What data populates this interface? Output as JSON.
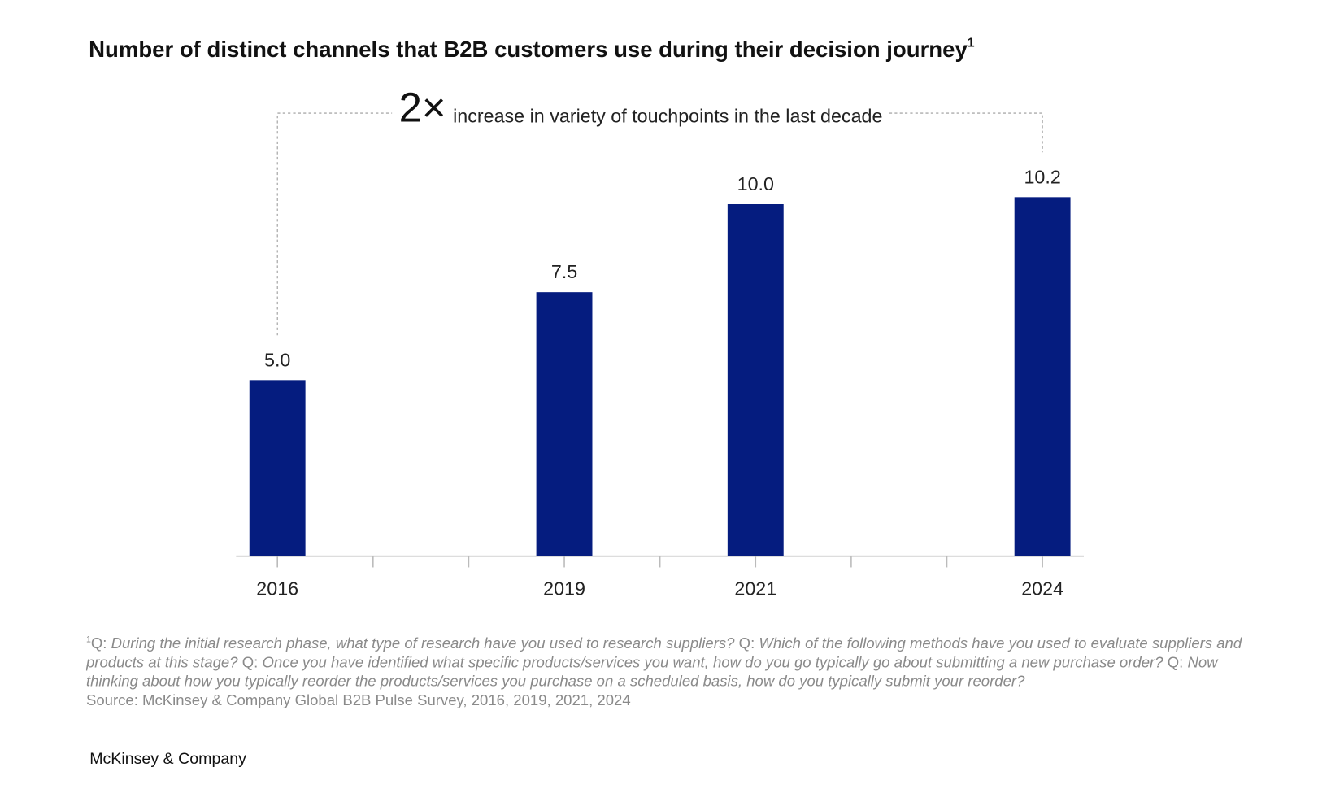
{
  "chart_data": {
    "type": "bar",
    "title": "Number of distinct channels that B2B customers use during their decision journey",
    "title_footnote_marker": "1",
    "annotation": {
      "multiplier": "2×",
      "text": "increase in variety of touchpoints in the last decade"
    },
    "categories": [
      "2016",
      null,
      null,
      "2019",
      null,
      "2021",
      null,
      null,
      "2024"
    ],
    "values": [
      5,
      null,
      null,
      7.5,
      null,
      10,
      null,
      null,
      10.2
    ],
    "value_labels": [
      "5.0",
      null,
      null,
      "7.5",
      null,
      "10.0",
      null,
      null,
      "10.2"
    ],
    "color": "#051c7f",
    "ylim": [
      0,
      12
    ]
  },
  "footnote": {
    "marker": "1",
    "items": [
      {
        "prefix": "Q:",
        "text": "During the initial research phase, what type of research have you used to research suppliers?"
      },
      {
        "prefix": "Q:",
        "text": "Which of the following methods have you used to evaluate suppliers and products at this stage?"
      },
      {
        "prefix": "Q:",
        "text": "Once you have identified what specific products/services you want, how do you go typically go about submitting a new purchase order?"
      },
      {
        "prefix": "Q:",
        "text": "Now thinking about how you typically reorder the products/services you purchase on a scheduled basis, how do you typically submit your reorder?"
      }
    ],
    "source": "Source: McKinsey & Company Global B2B Pulse Survey, 2016, 2019, 2021, 2024"
  },
  "brand": "McKinsey & Company"
}
